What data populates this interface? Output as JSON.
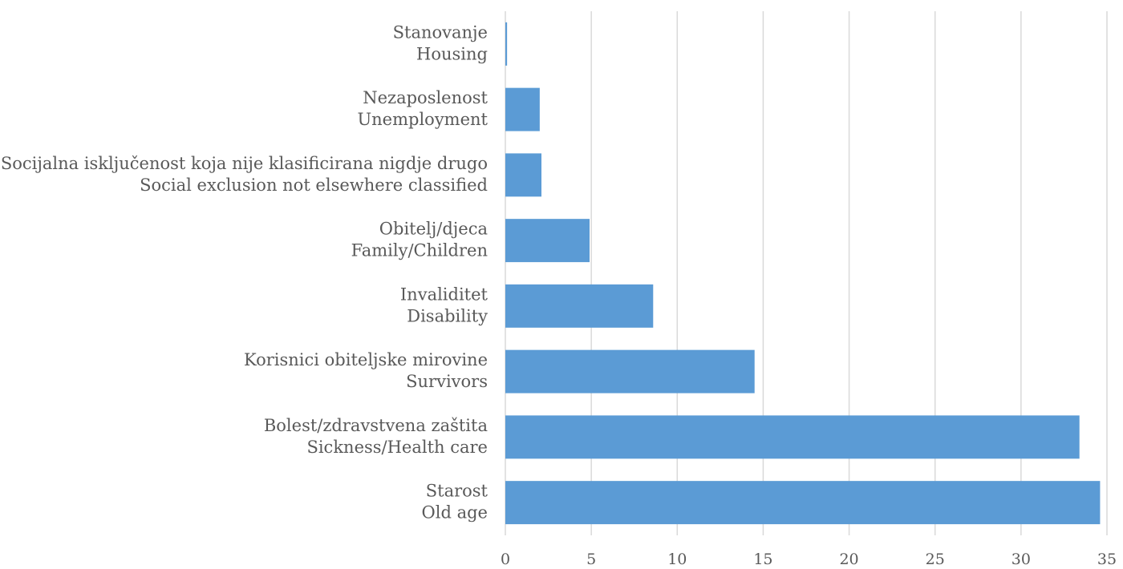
{
  "chart_data": {
    "type": "bar",
    "orientation": "horizontal",
    "categories": [
      [
        "Starost",
        "Old age"
      ],
      [
        "Bolest/zdravstvena zaštita",
        "Sickness/Health care"
      ],
      [
        "Korisnici obiteljske mirovine",
        "Survivors"
      ],
      [
        "Invaliditet",
        "Disability"
      ],
      [
        "Obitelj/djeca",
        "Family/Children"
      ],
      [
        "Socijalna isključenost koja nije klasificirana nigdje drugo",
        "Social exclusion not elsewhere classified"
      ],
      [
        "Nezaposlenost",
        "Unemployment"
      ],
      [
        "Stanovanje",
        "Housing"
      ]
    ],
    "values": [
      34.6,
      33.4,
      14.5,
      8.6,
      4.9,
      2.1,
      2.0,
      0.1
    ],
    "xlim": [
      0,
      35
    ],
    "xticks": [
      "0",
      "5",
      "10",
      "15",
      "20",
      "25",
      "30",
      "35"
    ],
    "grid": true,
    "bar_color": "#5b9bd5",
    "grid_color": "#d9d9d9",
    "text_color": "#595959"
  }
}
